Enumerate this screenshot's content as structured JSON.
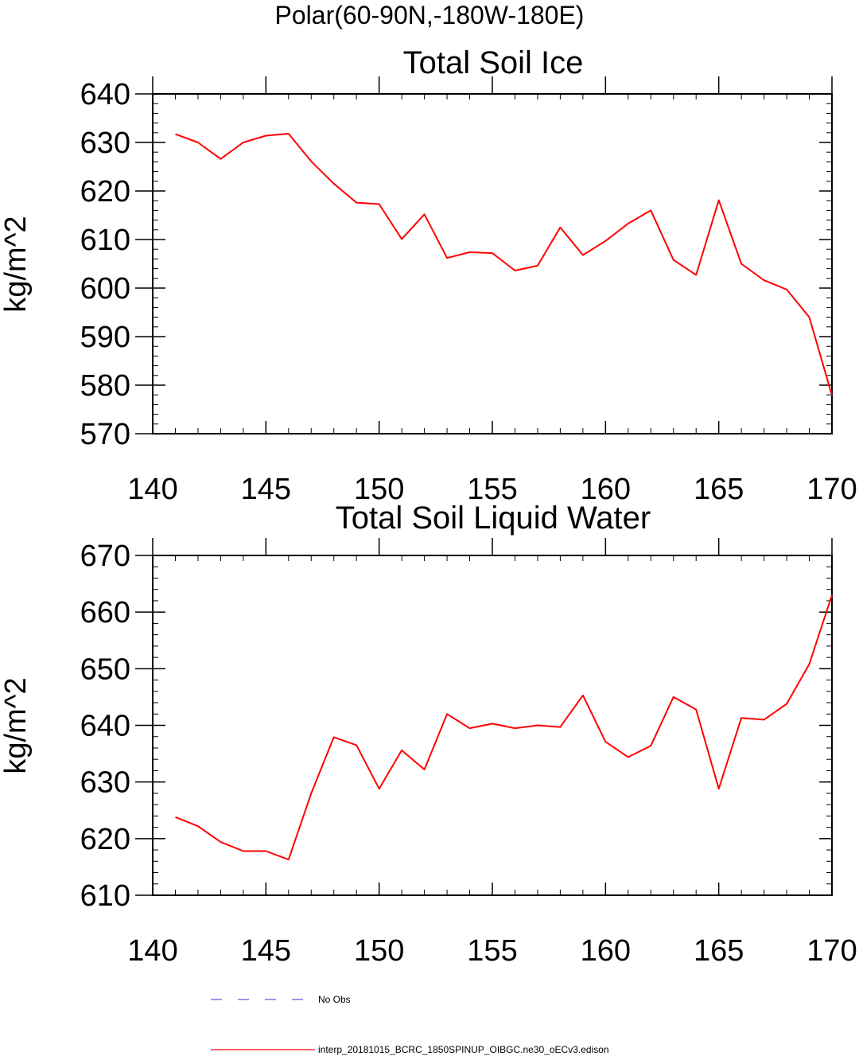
{
  "figure": {
    "title": "Polar(60-90N,-180W-180E)"
  },
  "colors": {
    "model_line": "#ff0000",
    "obs_line": "#5a5adc",
    "axis": "#000000"
  },
  "chart_data": [
    {
      "type": "line",
      "title": "Total Soil Ice",
      "xlabel": "",
      "ylabel": "kg/m^2",
      "xlim": [
        140,
        170
      ],
      "ylim": [
        570,
        640
      ],
      "x_ticks": [
        140,
        145,
        150,
        155,
        160,
        165,
        170
      ],
      "y_ticks": [
        570,
        580,
        590,
        600,
        610,
        620,
        630,
        640
      ],
      "grid": false,
      "series": [
        {
          "name": "interp_20181015_BCRC_1850SPINUP_OIBGC.ne30_oECv3.edison",
          "x": [
            141,
            142,
            143,
            144,
            145,
            146,
            147,
            148,
            149,
            150,
            151,
            152,
            153,
            154,
            155,
            156,
            157,
            158,
            159,
            160,
            161,
            162,
            163,
            164,
            165,
            166,
            167,
            168,
            169,
            170
          ],
          "values": [
            631.7,
            630.0,
            626.6,
            630.0,
            631.4,
            631.8,
            626.1,
            621.5,
            617.6,
            617.3,
            610.1,
            615.2,
            606.2,
            607.4,
            607.2,
            603.6,
            604.6,
            612.5,
            606.8,
            609.7,
            613.3,
            616.0,
            605.8,
            602.7,
            618.1,
            605.0,
            601.6,
            599.7,
            594.0,
            577.9
          ]
        }
      ]
    },
    {
      "type": "line",
      "title": "Total Soil Liquid Water",
      "xlabel": "",
      "ylabel": "kg/m^2",
      "xlim": [
        140,
        170
      ],
      "ylim": [
        610,
        670
      ],
      "x_ticks": [
        140,
        145,
        150,
        155,
        160,
        165,
        170
      ],
      "y_ticks": [
        610,
        620,
        630,
        640,
        650,
        660,
        670
      ],
      "grid": false,
      "series": [
        {
          "name": "interp_20181015_BCRC_1850SPINUP_OIBGC.ne30_oECv3.edison",
          "x": [
            141,
            142,
            143,
            144,
            145,
            146,
            147,
            148,
            149,
            150,
            151,
            152,
            153,
            154,
            155,
            156,
            157,
            158,
            159,
            160,
            161,
            162,
            163,
            164,
            165,
            166,
            167,
            168,
            169,
            170
          ],
          "values": [
            623.8,
            622.2,
            619.4,
            617.8,
            617.8,
            616.3,
            628.0,
            637.9,
            636.5,
            628.8,
            635.6,
            632.2,
            642.0,
            639.5,
            640.3,
            639.5,
            640.0,
            639.7,
            645.3,
            637.1,
            634.4,
            636.4,
            645.0,
            642.8,
            628.8,
            641.3,
            641.0,
            643.8,
            650.8,
            663.0
          ]
        }
      ]
    }
  ],
  "legend": [
    {
      "label": "No Obs",
      "style": "dashed",
      "color": "#5a5adc"
    },
    {
      "label": "interp_20181015_BCRC_1850SPINUP_OIBGC.ne30_oECv3.edison",
      "style": "solid",
      "color": "#ff0000"
    }
  ]
}
